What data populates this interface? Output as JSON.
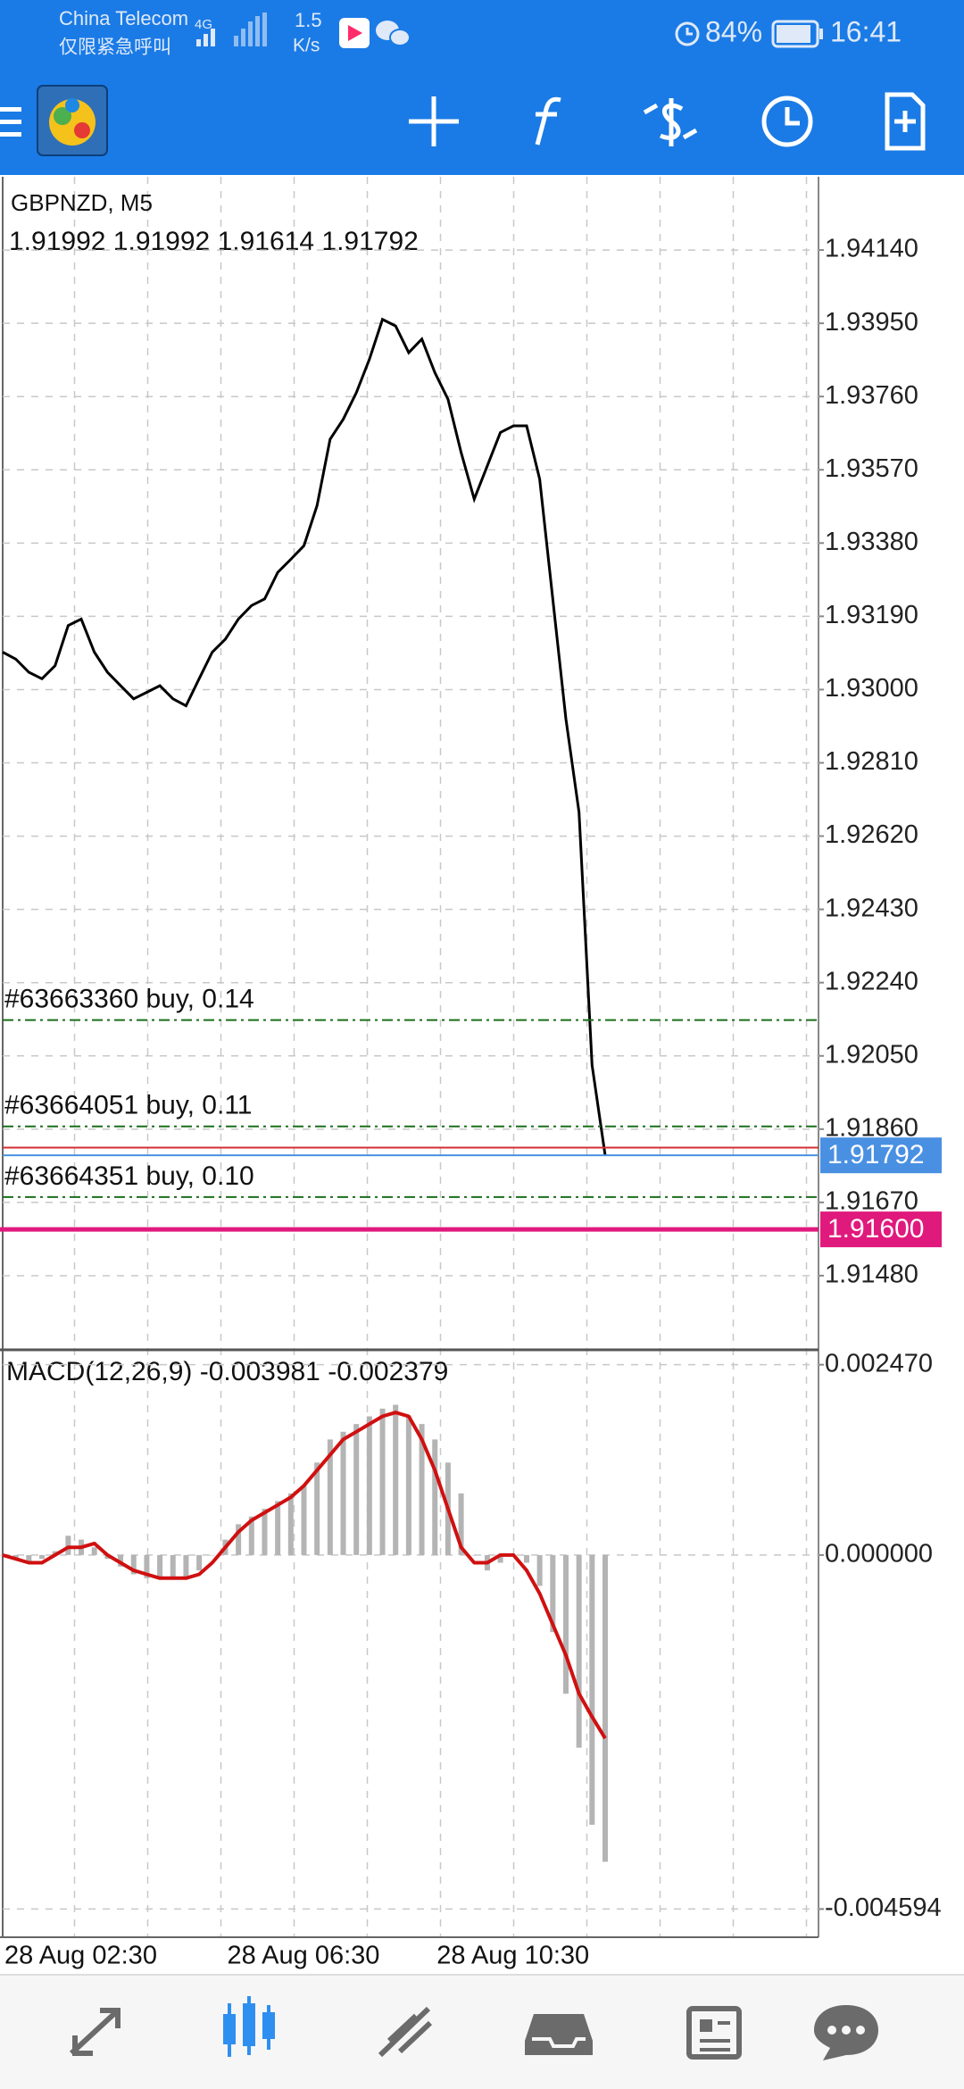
{
  "status_bar": {
    "carrier": "China Telecom",
    "emergency": "仅限紧急呼叫",
    "network": "4G",
    "speed": "1.5",
    "speed_unit": "K/s",
    "battery": "84%",
    "time": "16:41"
  },
  "chart_data": [
    {
      "type": "line",
      "title": "GBPNZD, M5",
      "ohlc": {
        "open": 1.91992,
        "high": 1.91992,
        "low": 1.91614,
        "close": 1.91792
      },
      "categories": [
        "28 Aug 02:30",
        null,
        null,
        null,
        null,
        null,
        null,
        null,
        null,
        null,
        null,
        null,
        null,
        null,
        null,
        null,
        null,
        "28 Aug 06:30",
        null,
        null,
        null,
        null,
        null,
        null,
        null,
        null,
        null,
        null,
        null,
        null,
        null,
        null,
        null,
        "28 Aug 10:30",
        null,
        null,
        null,
        null,
        null,
        null,
        null,
        null,
        null,
        null,
        null,
        null,
        null
      ],
      "series": [
        {
          "color": "#000000",
          "values": [
            1.93097,
            1.93079,
            1.93045,
            1.93028,
            1.93062,
            1.93166,
            1.93183,
            1.93097,
            1.93045,
            1.9301,
            1.92976,
            1.92993,
            1.9301,
            1.92976,
            1.92958,
            1.93028,
            1.93097,
            1.93131,
            1.93183,
            1.93218,
            1.93235,
            1.93304,
            1.93338,
            1.93373,
            1.93477,
            1.93649,
            1.93701,
            1.9377,
            1.93857,
            1.9396,
            1.93943,
            1.93874,
            1.93909,
            1.93822,
            1.93753,
            1.93615,
            1.93494,
            1.9358,
            1.93667,
            1.93684,
            1.93684,
            1.93546,
            1.93235,
            1.92924,
            1.92682,
            1.92026,
            1.91792
          ]
        }
      ],
      "ylim": [
        1.9129,
        1.9433
      ],
      "yticks": [
        {
          "value": 1.9414,
          "label": "1.94140"
        },
        {
          "value": 1.9395,
          "label": "1.93950"
        },
        {
          "value": 1.9376,
          "label": "1.93760"
        },
        {
          "value": 1.9357,
          "label": "1.93570"
        },
        {
          "value": 1.9338,
          "label": "1.93380"
        },
        {
          "value": 1.9319,
          "label": "1.93190"
        },
        {
          "value": 1.93,
          "label": "1.93000"
        },
        {
          "value": 1.9281,
          "label": "1.92810"
        },
        {
          "value": 1.9262,
          "label": "1.92620"
        },
        {
          "value": 1.9243,
          "label": "1.92430"
        },
        {
          "value": 1.9224,
          "label": "1.92240"
        },
        {
          "value": 1.9205,
          "label": "1.92050"
        },
        {
          "value": 1.9186,
          "label": "1.91860"
        },
        {
          "value": 1.9167,
          "label": "1.91670"
        },
        {
          "value": 1.9148,
          "label": "1.91480"
        }
      ],
      "grid": true,
      "orders": [
        {
          "label": "#63663360 buy, 0.14",
          "price": 1.92143,
          "color": "#1b6e1b"
        },
        {
          "label": "#63664051 buy, 0.11",
          "price": 1.91867,
          "color": "#1b6e1b"
        },
        {
          "label": "#63664351 buy, 0.10",
          "price": 1.91684,
          "color": "#1b6e1b"
        }
      ],
      "ask": 1.91812,
      "stop_level": {
        "value": 1.916,
        "label": "1.91600"
      }
    },
    {
      "type": "macd",
      "title": "MACD(12,26,9)",
      "series": [
        {
          "color": "#b4b4b4",
          "values": [
            0,
            -5e-05,
            -0.0001,
            -5e-05,
            5e-05,
            0.00025,
            0.0002,
            0.0001,
            -5e-05,
            -0.00015,
            -0.00025,
            -0.0003,
            -0.0003,
            -0.0003,
            -0.0003,
            -0.0002,
            0,
            0.0002,
            0.0004,
            0.0005,
            0.0006,
            0.0007,
            0.0008,
            0.0009,
            0.0012,
            0.0015,
            0.0016,
            0.0017,
            0.0018,
            0.0019,
            0.00195,
            0.0018,
            0.0017,
            0.0015,
            0.0012,
            0.0008,
            0,
            -0.0002,
            -0.0001,
            0,
            -0.0001,
            -0.0004,
            -0.001,
            -0.0018,
            -0.0025,
            -0.0035,
            -0.003981
          ]
        },
        {
          "color": "#d01010",
          "values": [
            0,
            -5e-05,
            -0.0001,
            -0.0001,
            0,
            0.0001,
            0.0001,
            0.00015,
            0,
            -0.0001,
            -0.0002,
            -0.00025,
            -0.0003,
            -0.0003,
            -0.0003,
            -0.00025,
            -0.0001,
            0.0001,
            0.0003,
            0.00045,
            0.00055,
            0.00065,
            0.00075,
            0.0009,
            0.0011,
            0.0013,
            0.0015,
            0.0016,
            0.0017,
            0.0018,
            0.00185,
            0.0018,
            0.0015,
            0.0011,
            0.0006,
            0.0001,
            -0.0001,
            -0.0001,
            0,
            0,
            -0.0002,
            -0.0005,
            -0.0009,
            -0.0013,
            -0.0018,
            -0.0021,
            -0.002379
          ]
        }
      ],
      "ylim": [
        -0.00496,
        0.00264
      ],
      "yticks": [
        {
          "value": 0.00247,
          "label": "0.002470"
        },
        {
          "value": 0,
          "label": "0.000000"
        },
        -0.004594
      ]
    }
  ]
}
